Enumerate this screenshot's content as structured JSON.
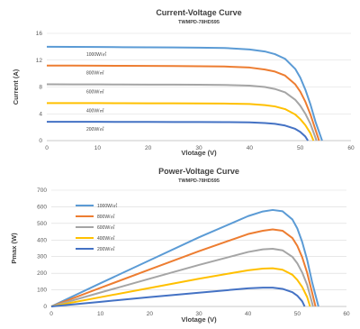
{
  "chart_data": [
    {
      "type": "line",
      "title": "Current-Voltage Curve",
      "subtitle": "TWMPD-78HD595",
      "xlabel": "Vlotage (V)",
      "ylabel": "Current (A)",
      "xlim": [
        0,
        60
      ],
      "ylim": [
        0,
        16
      ],
      "xticks": [
        0,
        10,
        20,
        30,
        40,
        50,
        60
      ],
      "yticks": [
        0,
        4,
        8,
        12,
        16
      ],
      "grid": "horizontal",
      "legend": "inline-left",
      "series": [
        {
          "name": "1000W/㎡",
          "color": "#5b9bd5",
          "isc": 14.0,
          "voc": 54.3,
          "x": [
            0,
            5,
            10,
            15,
            20,
            25,
            30,
            35,
            40,
            43,
            45,
            47,
            49,
            50,
            51,
            52,
            53,
            54.3
          ],
          "y": [
            14.0,
            13.98,
            13.96,
            13.94,
            13.92,
            13.9,
            13.87,
            13.82,
            13.6,
            13.3,
            12.9,
            12.2,
            10.7,
            9.4,
            7.6,
            5.4,
            2.8,
            0
          ]
        },
        {
          "name": "800W/㎡",
          "color": "#ed7d31",
          "isc": 11.2,
          "voc": 53.7,
          "x": [
            0,
            5,
            10,
            15,
            20,
            25,
            30,
            35,
            40,
            43,
            45,
            47,
            49,
            50,
            51,
            52,
            53,
            53.7
          ],
          "y": [
            11.2,
            11.19,
            11.18,
            11.16,
            11.14,
            11.12,
            11.1,
            11.06,
            10.9,
            10.6,
            10.3,
            9.7,
            8.4,
            7.3,
            5.8,
            3.9,
            1.6,
            0
          ]
        },
        {
          "name": "600W/㎡",
          "color": "#a5a5a5",
          "isc": 8.4,
          "voc": 53.2,
          "x": [
            0,
            5,
            10,
            15,
            20,
            25,
            30,
            35,
            40,
            43,
            45,
            47,
            49,
            50,
            51,
            52,
            53.2
          ],
          "y": [
            8.4,
            8.39,
            8.38,
            8.37,
            8.36,
            8.35,
            8.33,
            8.3,
            8.2,
            8.0,
            7.7,
            7.2,
            6.1,
            5.2,
            4.0,
            2.5,
            0
          ]
        },
        {
          "name": "400W/㎡",
          "color": "#ffc000",
          "isc": 5.6,
          "voc": 52.6,
          "x": [
            0,
            5,
            10,
            15,
            20,
            25,
            30,
            35,
            40,
            43,
            45,
            47,
            49,
            50,
            51,
            52,
            52.6
          ],
          "y": [
            5.6,
            5.6,
            5.59,
            5.58,
            5.57,
            5.56,
            5.55,
            5.53,
            5.46,
            5.3,
            5.1,
            4.7,
            3.9,
            3.2,
            2.3,
            1.1,
            0
          ]
        },
        {
          "name": "200W/㎡",
          "color": "#4472c4",
          "isc": 2.8,
          "voc": 51.5,
          "x": [
            0,
            5,
            10,
            15,
            20,
            25,
            30,
            35,
            40,
            43,
            45,
            47,
            49,
            50,
            51,
            51.5
          ],
          "y": [
            2.8,
            2.8,
            2.8,
            2.79,
            2.79,
            2.78,
            2.77,
            2.76,
            2.72,
            2.62,
            2.5,
            2.25,
            1.75,
            1.3,
            0.6,
            0
          ]
        }
      ]
    },
    {
      "type": "line",
      "title": "Power-Voltage Curve",
      "subtitle": "TWMPD-78HD595",
      "xlabel": "Vlotage (V)",
      "ylabel": "Pmax (W)",
      "xlim": [
        0,
        60
      ],
      "ylim": [
        0,
        700
      ],
      "xticks": [
        0,
        10,
        20,
        30,
        40,
        50,
        60
      ],
      "yticks": [
        0,
        100,
        200,
        300,
        400,
        500,
        600,
        700
      ],
      "grid": "horizontal",
      "legend": "top-left",
      "series": [
        {
          "name": "1000W/㎡",
          "color": "#5b9bd5",
          "x": [
            0,
            10,
            20,
            30,
            40,
            43,
            45,
            47,
            49,
            50,
            51,
            52,
            53,
            54.3
          ],
          "y": [
            0,
            140,
            278,
            416,
            544,
            572,
            581,
            573,
            524,
            470,
            388,
            281,
            148,
            0
          ]
        },
        {
          "name": "800W/㎡",
          "color": "#ed7d31",
          "x": [
            0,
            10,
            20,
            30,
            40,
            43,
            45,
            47,
            49,
            50,
            51,
            52,
            53,
            53.7
          ],
          "y": [
            0,
            112,
            223,
            333,
            436,
            456,
            464,
            456,
            412,
            365,
            296,
            203,
            85,
            0
          ]
        },
        {
          "name": "600W/㎡",
          "color": "#a5a5a5",
          "x": [
            0,
            10,
            20,
            30,
            40,
            43,
            45,
            47,
            49,
            50,
            51,
            52,
            53.2
          ],
          "y": [
            0,
            84,
            167,
            250,
            328,
            344,
            347,
            338,
            299,
            260,
            204,
            130,
            0
          ]
        },
        {
          "name": "400W/㎡",
          "color": "#ffc000",
          "x": [
            0,
            10,
            20,
            30,
            40,
            43,
            45,
            47,
            49,
            50,
            51,
            52,
            52.6
          ],
          "y": [
            0,
            56,
            111,
            167,
            218,
            228,
            230,
            221,
            191,
            160,
            117,
            57,
            0
          ]
        },
        {
          "name": "200W/㎡",
          "color": "#4472c4",
          "x": [
            0,
            10,
            20,
            30,
            40,
            43,
            45,
            47,
            49,
            50,
            51,
            51.5
          ],
          "y": [
            0,
            28,
            56,
            83,
            109,
            113,
            113,
            106,
            86,
            65,
            31,
            0
          ]
        }
      ]
    }
  ]
}
